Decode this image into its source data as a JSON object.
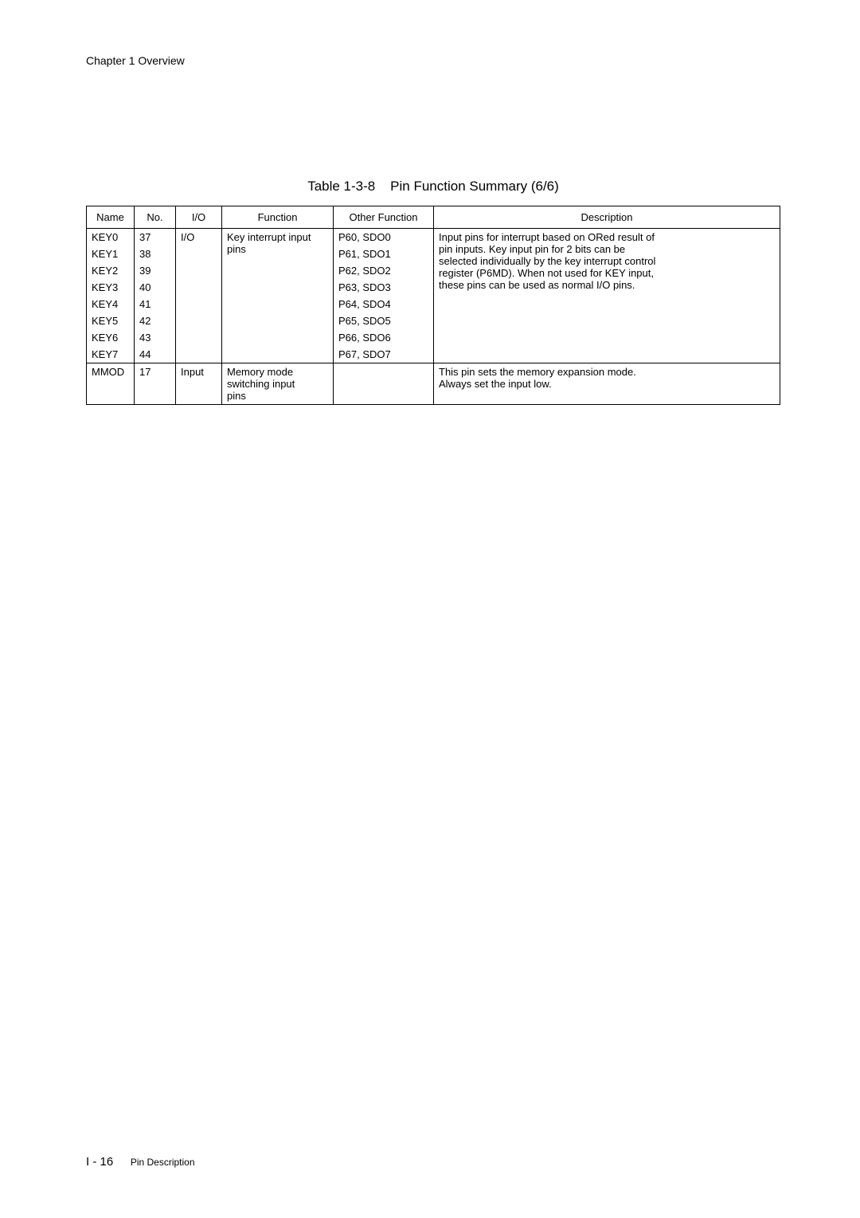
{
  "header": {
    "chapter": "Chapter 1   Overview"
  },
  "caption": {
    "label": "Table 1-3-8",
    "title": "Pin Function Summary (6/6)"
  },
  "table": {
    "head": {
      "name": "Name",
      "no": "No.",
      "io": "I/O",
      "func": "Function",
      "other": "Other Function",
      "desc": "Description"
    },
    "body": {
      "io_key": "I/O",
      "func_key_l1": "Key interrupt input",
      "func_key_l2": "pins",
      "desc_key_l1": "Input pins for interrupt based on ORed result of",
      "desc_key_l2": "pin inputs.  Key input pin for 2 bits can be",
      "desc_key_l3": "selected individually by the key interrupt control",
      "desc_key_l4": "register (P6MD).  When not used for KEY input,",
      "desc_key_l5": "these pins can be used as normal I/O pins.",
      "r1_name": "KEY0",
      "r1_no": "37",
      "r1_other": "P60, SDO0",
      "r2_name": "KEY1",
      "r2_no": "38",
      "r2_other": "P61, SDO1",
      "r3_name": "KEY2",
      "r3_no": "39",
      "r3_other": "P62, SDO2",
      "r4_name": "KEY3",
      "r4_no": "40",
      "r4_other": "P63, SDO3",
      "r5_name": "KEY4",
      "r5_no": "41",
      "r5_other": "P64, SDO4",
      "r6_name": "KEY5",
      "r6_no": "42",
      "r6_other": "P65, SDO5",
      "r7_name": "KEY6",
      "r7_no": "43",
      "r7_other": "P66, SDO6",
      "r8_name": "KEY7",
      "r8_no": "44",
      "r8_other": "P67, SDO7",
      "mmod_name": "MMOD",
      "mmod_no": "17",
      "mmod_io": "Input",
      "mmod_func_l1": "Memory mode",
      "mmod_func_l2": "switching input",
      "mmod_func_l3": "pins",
      "mmod_desc_l1": "This pin sets the memory expansion mode.",
      "mmod_desc_l2": "Always set the input low."
    }
  },
  "footer": {
    "page": "I - 16",
    "section": "Pin Description"
  }
}
